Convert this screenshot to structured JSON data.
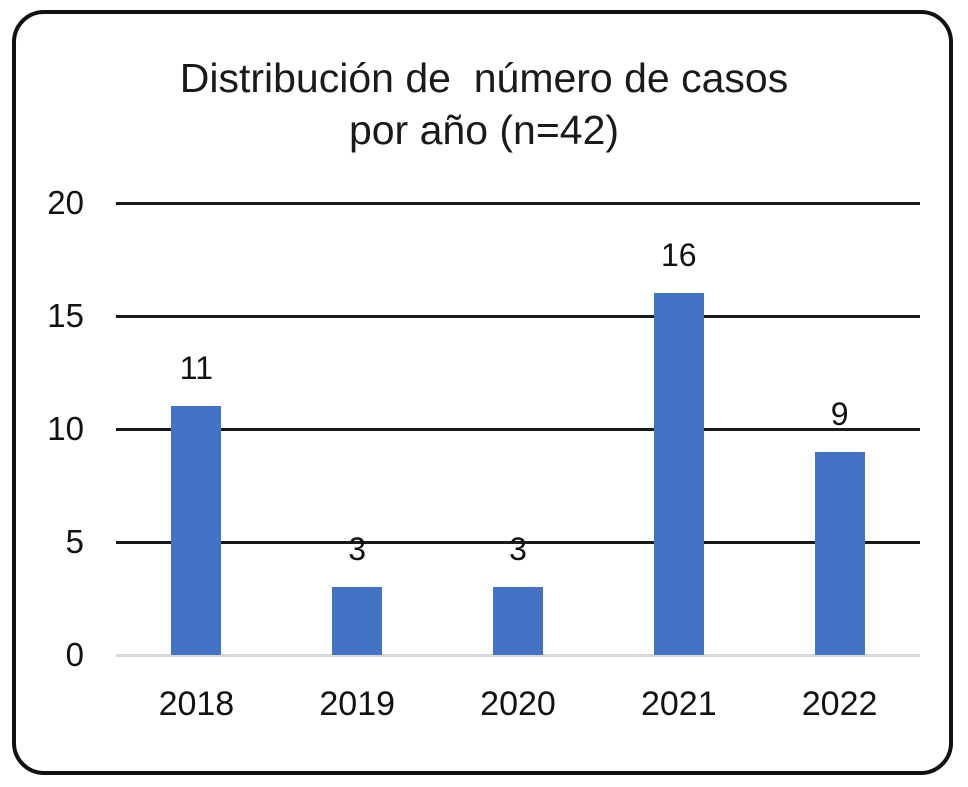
{
  "page": {
    "background_color": "#ffffff",
    "frame_border_color": "#111111"
  },
  "chart_data": {
    "type": "bar",
    "title": "Distribución de  número de casos por año (n=42)",
    "title_lines": [
      "Distribución de  número de casos",
      "por año (n=42)"
    ],
    "categories": [
      "2018",
      "2019",
      "2020",
      "2021",
      "2022"
    ],
    "values": [
      11,
      3,
      3,
      16,
      9
    ],
    "data_labels": [
      "11",
      "3",
      "3",
      "16",
      "9"
    ],
    "yticks": [
      0,
      5,
      10,
      15,
      20
    ],
    "ylim": [
      0,
      20
    ],
    "xlabel": "",
    "ylabel": "",
    "legend": "none",
    "grid": "horizontal",
    "bar_color": "#4472C4",
    "gridline_color": "#1a1a1a",
    "baseline_color": "#d9d9d9",
    "text_color": "#111111"
  }
}
